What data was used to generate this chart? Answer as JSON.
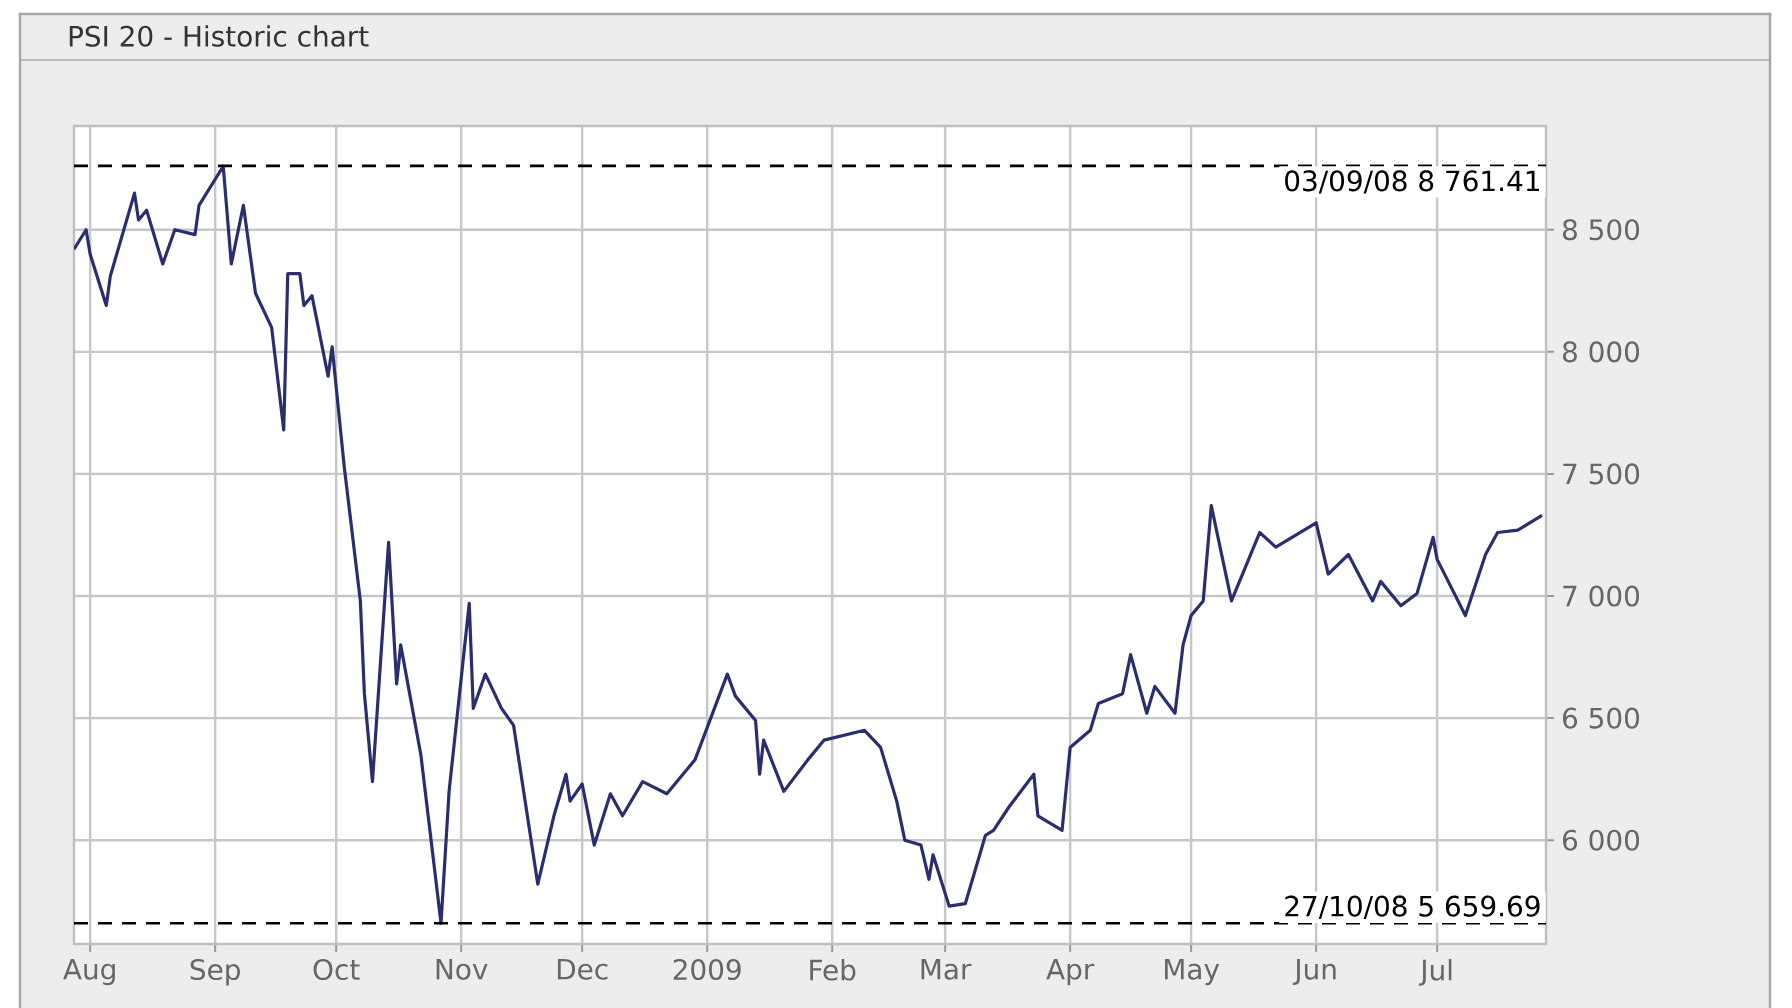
{
  "chart_data": {
    "type": "line",
    "title": "PSI 20 - Historic chart",
    "x": [
      "2008-07-28",
      "2008-07-31",
      "2008-08-01",
      "2008-08-05",
      "2008-08-06",
      "2008-08-12",
      "2008-08-13",
      "2008-08-15",
      "2008-08-19",
      "2008-08-22",
      "2008-08-27",
      "2008-08-28",
      "2008-09-03",
      "2008-09-05",
      "2008-09-08",
      "2008-09-11",
      "2008-09-15",
      "2008-09-18",
      "2008-09-19",
      "2008-09-22",
      "2008-09-23",
      "2008-09-25",
      "2008-09-29",
      "2008-09-30",
      "2008-10-03",
      "2008-10-07",
      "2008-10-08",
      "2008-10-10",
      "2008-10-14",
      "2008-10-16",
      "2008-10-17",
      "2008-10-22",
      "2008-10-27",
      "2008-10-29",
      "2008-11-03",
      "2008-11-04",
      "2008-11-07",
      "2008-11-11",
      "2008-11-14",
      "2008-11-20",
      "2008-11-24",
      "2008-11-27",
      "2008-11-28",
      "2008-12-01",
      "2008-12-04",
      "2008-12-08",
      "2008-12-11",
      "2008-12-16",
      "2008-12-22",
      "2008-12-29",
      "2009-01-06",
      "2009-01-08",
      "2009-01-13",
      "2009-01-14",
      "2009-01-15",
      "2009-01-20",
      "2009-01-26",
      "2009-01-30",
      "2009-02-09",
      "2009-02-13",
      "2009-02-17",
      "2009-02-19",
      "2009-02-23",
      "2009-02-25",
      "2009-02-26",
      "2009-03-02",
      "2009-03-06",
      "2009-03-11",
      "2009-03-13",
      "2009-03-17",
      "2009-03-23",
      "2009-03-24",
      "2009-03-30",
      "2009-04-01",
      "2009-04-06",
      "2009-04-08",
      "2009-04-14",
      "2009-04-16",
      "2009-04-20",
      "2009-04-22",
      "2009-04-27",
      "2009-04-29",
      "2009-05-01",
      "2009-05-04",
      "2009-05-06",
      "2009-05-11",
      "2009-05-18",
      "2009-05-22",
      "2009-06-01",
      "2009-06-04",
      "2009-06-09",
      "2009-06-15",
      "2009-06-17",
      "2009-06-22",
      "2009-06-26",
      "2009-06-30",
      "2009-07-01",
      "2009-07-08",
      "2009-07-13",
      "2009-07-16",
      "2009-07-21",
      "2009-07-27"
    ],
    "values": [
      8420,
      8500,
      8400,
      8190,
      8310,
      8650,
      8540,
      8580,
      8360,
      8500,
      8480,
      8600,
      8760,
      8360,
      8600,
      8240,
      8100,
      7680,
      8320,
      8320,
      8190,
      8230,
      7900,
      8020,
      7530,
      6980,
      6600,
      6240,
      7220,
      6640,
      6800,
      6350,
      5660,
      6200,
      6970,
      6540,
      6680,
      6540,
      6470,
      5820,
      6100,
      6270,
      6160,
      6230,
      5980,
      6190,
      6100,
      6240,
      6190,
      6330,
      6680,
      6590,
      6490,
      6270,
      6410,
      6200,
      6330,
      6410,
      6450,
      6380,
      6160,
      6000,
      5980,
      5840,
      5940,
      5730,
      5740,
      6020,
      6040,
      6140,
      6270,
      6100,
      6040,
      6380,
      6450,
      6560,
      6600,
      6760,
      6520,
      6630,
      6520,
      6800,
      6920,
      6980,
      7370,
      6980,
      7260,
      7200,
      7300,
      7090,
      7170,
      6980,
      7060,
      6960,
      7010,
      7240,
      7150,
      6920,
      7170,
      7260,
      7270,
      7330
    ],
    "color": "#2b2e6e",
    "xlim": [
      "2008-07-28",
      "2009-07-28"
    ],
    "xticks": [
      {
        "value": "2008-08-01",
        "label": "Aug"
      },
      {
        "value": "2008-09-01",
        "label": "Sep"
      },
      {
        "value": "2008-10-01",
        "label": "Oct"
      },
      {
        "value": "2008-11-01",
        "label": "Nov"
      },
      {
        "value": "2008-12-01",
        "label": "Dec"
      },
      {
        "value": "2009-01-01",
        "label": "2009"
      },
      {
        "value": "2009-02-01",
        "label": "Feb"
      },
      {
        "value": "2009-03-01",
        "label": "Mar"
      },
      {
        "value": "2009-04-01",
        "label": "Apr"
      },
      {
        "value": "2009-05-01",
        "label": "May"
      },
      {
        "value": "2009-06-01",
        "label": "Jun"
      },
      {
        "value": "2009-07-01",
        "label": "Jul"
      }
    ],
    "ylim": [
      5575,
      8925
    ],
    "yticks": [
      {
        "value": 6000,
        "label": "6 000"
      },
      {
        "value": 6500,
        "label": "6 500"
      },
      {
        "value": 7000,
        "label": "7 000"
      },
      {
        "value": 7500,
        "label": "7 500"
      },
      {
        "value": 8000,
        "label": "8 000"
      },
      {
        "value": 8500,
        "label": "8 500"
      }
    ],
    "grid": true,
    "ref_lines": [
      {
        "axis": "y",
        "value": 8761.41,
        "label": "03/09/08 8 761.41",
        "color": "#000000",
        "line_style": "dashed"
      },
      {
        "axis": "y",
        "value": 5659.69,
        "label": "27/10/08 5 659.69",
        "color": "#000000",
        "line_style": "dashed"
      }
    ]
  }
}
